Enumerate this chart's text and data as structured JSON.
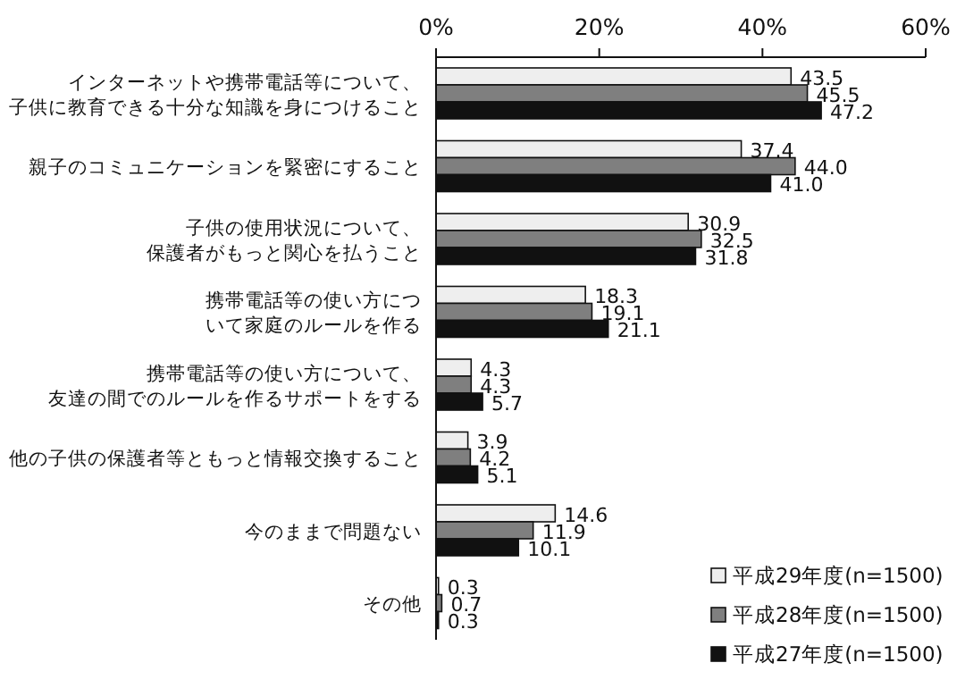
{
  "chart_data": {
    "type": "bar",
    "orientation": "horizontal",
    "categories": [
      "インターネットや携帯電話等について、子供に教育できる十分な知識を身につけること",
      "親子のコミュニケーションを緊密にすること",
      "子供の使用状況について、保護者がもっと関心を払うこと",
      "携帯電話等の使い方について家庭のルールを作る",
      "携帯電話等の使い方について、友達の間でのルールを作るサポートをする",
      "他の子供の保護者等ともっと情報交換すること",
      "今のままで問題ない",
      "その他"
    ],
    "series": [
      {
        "name": "平成29年度(n=1500)",
        "color": "#eeeeee",
        "values": [
          43.5,
          37.4,
          30.9,
          18.3,
          4.3,
          3.9,
          14.6,
          0.3
        ],
        "value_labels": [
          "43.5",
          "37.4",
          "30.9",
          "18.3",
          "4.3",
          "3.9",
          "14.6",
          "0.3"
        ]
      },
      {
        "name": "平成28年度(n=1500)",
        "color": "#7f7f7f",
        "values": [
          45.5,
          44.0,
          32.5,
          19.1,
          4.3,
          4.2,
          11.9,
          0.7
        ],
        "value_labels": [
          "45.5",
          "44.0",
          "32.5",
          "19.1",
          "4.3",
          "4.2",
          "11.9",
          "0.7"
        ]
      },
      {
        "name": "平成27年度(n=1500)",
        "color": "#111111",
        "values": [
          47.2,
          41.0,
          31.8,
          21.1,
          5.7,
          5.1,
          10.1,
          0.3
        ],
        "value_labels": [
          "47.2",
          "41.0",
          "31.8",
          "21.1",
          "5.7",
          "5.1",
          "10.1",
          "0.3"
        ]
      }
    ],
    "xlim": [
      0,
      60
    ],
    "xticks": [
      {
        "value": 0,
        "label": "0%"
      },
      {
        "value": 20,
        "label": "20%"
      },
      {
        "value": 40,
        "label": "40%"
      },
      {
        "value": 60,
        "label": "60%"
      }
    ],
    "grid": false,
    "legend": "bottom right"
  }
}
